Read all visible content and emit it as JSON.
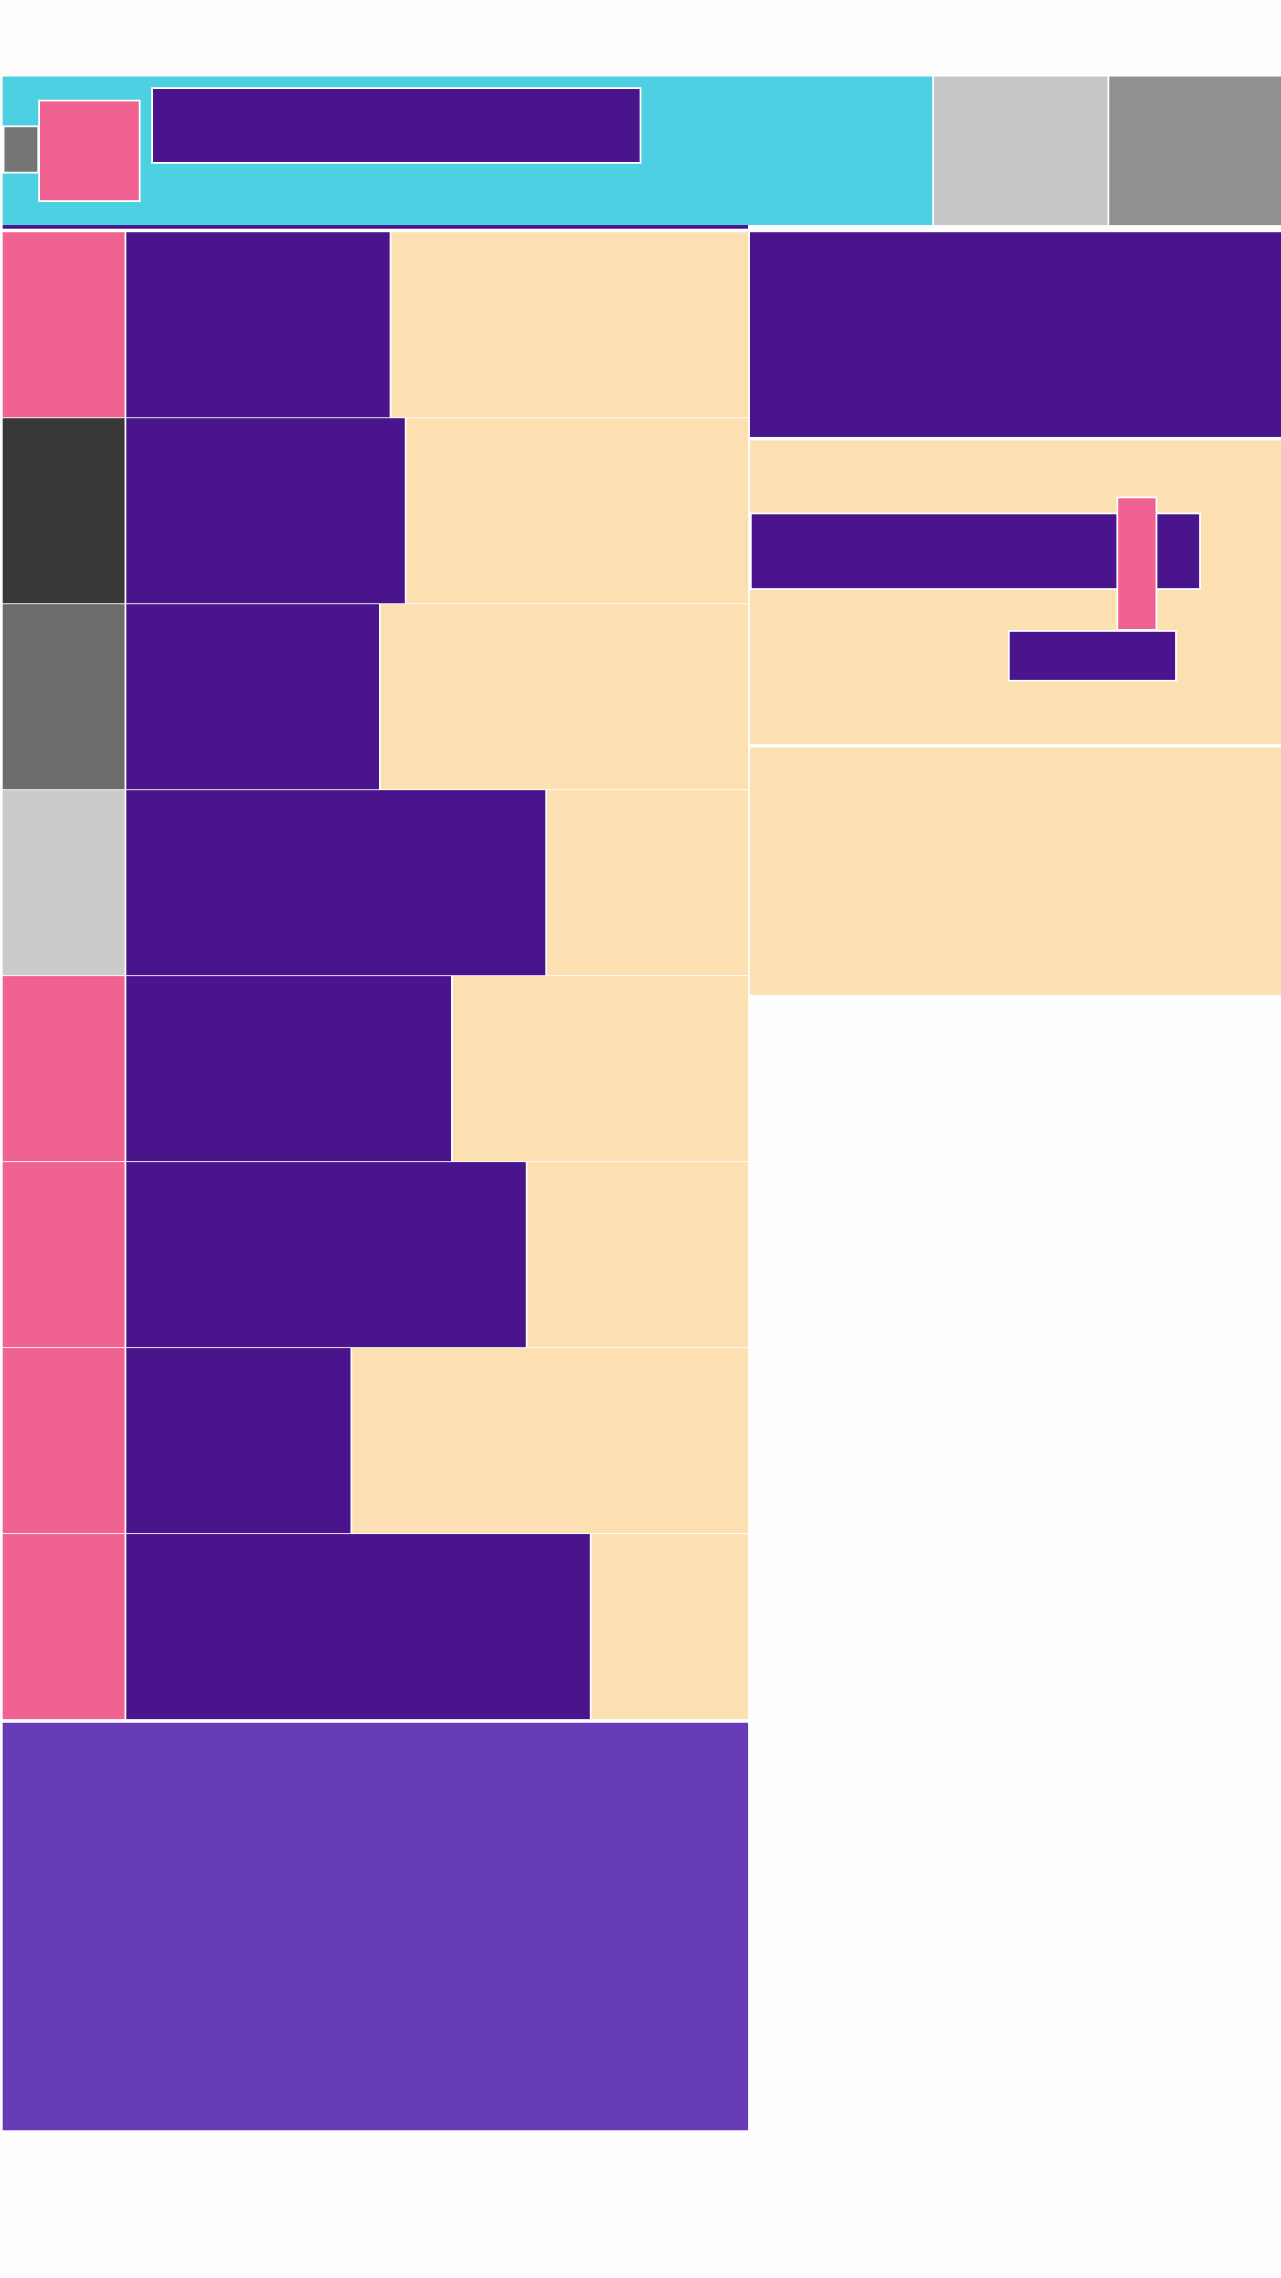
{
  "theme": {
    "header_bg": "#4dd0e1",
    "primary_dark": "#4a148c",
    "accent_pink": "#f06292",
    "row_bg": "#fce0b2",
    "footer_bg": "#673ab7",
    "gray_light": "#c7c7c7",
    "gray_mid": "#909090",
    "gray_dark": "#757575"
  },
  "rows": [
    {
      "icon_color": "#f06292"
    },
    {
      "icon_color": "#383838"
    },
    {
      "icon_color": "#6c6c6c"
    },
    {
      "icon_color": "#cbcbcb"
    },
    {
      "icon_color": "#f06292"
    },
    {
      "icon_color": "#f06292"
    },
    {
      "icon_color": "#f06292"
    },
    {
      "icon_color": "#f06292"
    }
  ]
}
